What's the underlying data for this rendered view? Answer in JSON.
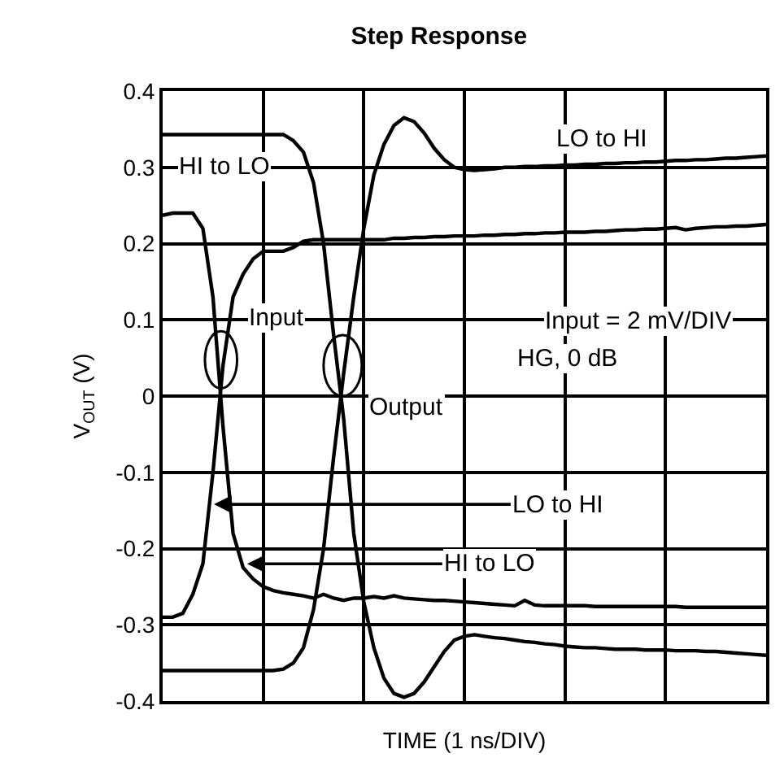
{
  "chart_data": {
    "type": "line",
    "title": "Step Response",
    "xlabel": "TIME (1 ns/DIV)",
    "ylabel": "V$_{OUT}$ (V)",
    "categories": [
      null,
      null,
      null,
      null,
      null,
      null,
      null,
      null,
      null,
      null,
      null,
      null,
      null,
      null,
      null,
      null,
      null,
      null,
      null,
      null,
      null,
      null,
      null,
      null,
      null,
      null,
      null,
      null,
      null,
      null,
      null,
      null,
      null,
      null,
      null,
      null,
      null,
      null,
      null,
      null,
      null,
      null,
      null,
      null,
      null,
      null,
      null,
      null,
      null,
      null,
      null,
      null,
      null,
      null,
      null,
      null,
      null,
      null,
      null,
      null,
      null
    ],
    "series": [
      {
        "color": "#000000",
        "values": [
          0.237,
          0.24,
          0.24,
          0.24,
          0.22,
          0.13,
          -0.04,
          -0.18,
          -0.225,
          -0.24,
          -0.25,
          -0.255,
          -0.258,
          -0.26,
          -0.262,
          -0.265,
          -0.26,
          -0.265,
          -0.268,
          -0.265,
          -0.265,
          -0.263,
          -0.265,
          -0.262,
          -0.265,
          -0.266,
          -0.267,
          -0.268,
          -0.268,
          -0.269,
          -0.27,
          -0.271,
          -0.272,
          -0.273,
          -0.274,
          -0.275,
          -0.268,
          -0.274,
          -0.275,
          -0.275,
          -0.275,
          -0.275,
          -0.275,
          -0.276,
          -0.276,
          -0.276,
          -0.276,
          -0.276,
          -0.276,
          -0.276,
          -0.276,
          -0.276,
          -0.277,
          -0.277,
          -0.277,
          -0.277,
          -0.277,
          -0.277,
          -0.277,
          -0.277,
          -0.277
        ]
      },
      {
        "color": "#000000",
        "values": [
          -0.29,
          -0.29,
          -0.285,
          -0.26,
          -0.22,
          -0.1,
          0.04,
          0.13,
          0.16,
          0.18,
          0.19,
          0.19,
          0.19,
          0.195,
          0.203,
          0.205,
          0.205,
          0.205,
          0.205,
          0.205,
          0.205,
          0.205,
          0.205,
          0.207,
          0.207,
          0.208,
          0.208,
          0.209,
          0.209,
          0.21,
          0.21,
          0.21,
          0.211,
          0.211,
          0.212,
          0.212,
          0.213,
          0.213,
          0.214,
          0.214,
          0.215,
          0.215,
          0.215,
          0.216,
          0.216,
          0.217,
          0.218,
          0.218,
          0.219,
          0.219,
          0.22,
          0.221,
          0.218,
          0.22,
          0.221,
          0.222,
          0.222,
          0.223,
          0.223,
          0.224,
          0.225
        ]
      },
      {
        "color": "#000000",
        "values": [
          -0.36,
          -0.36,
          -0.36,
          -0.36,
          -0.36,
          -0.36,
          -0.36,
          -0.36,
          -0.36,
          -0.36,
          -0.36,
          -0.36,
          -0.358,
          -0.35,
          -0.33,
          -0.28,
          -0.2,
          -0.08,
          0.03,
          0.13,
          0.22,
          0.29,
          0.33,
          0.355,
          0.365,
          0.36,
          0.345,
          0.325,
          0.31,
          0.3,
          0.297,
          0.296,
          0.297,
          0.298,
          0.3,
          0.3,
          0.301,
          0.301,
          0.302,
          0.302,
          0.303,
          0.303,
          0.304,
          0.304,
          0.305,
          0.305,
          0.306,
          0.306,
          0.307,
          0.307,
          0.308,
          0.309,
          0.309,
          0.31,
          0.31,
          0.311,
          0.312,
          0.312,
          0.313,
          0.314,
          0.315
        ]
      },
      {
        "color": "#000000",
        "values": [
          0.343,
          0.343,
          0.343,
          0.343,
          0.343,
          0.343,
          0.343,
          0.343,
          0.343,
          0.343,
          0.343,
          0.343,
          0.343,
          0.335,
          0.32,
          0.28,
          0.2,
          0.08,
          -0.03,
          -0.18,
          -0.27,
          -0.33,
          -0.37,
          -0.39,
          -0.395,
          -0.39,
          -0.375,
          -0.355,
          -0.335,
          -0.32,
          -0.315,
          -0.313,
          -0.315,
          -0.317,
          -0.318,
          -0.32,
          -0.322,
          -0.323,
          -0.325,
          -0.326,
          -0.328,
          -0.329,
          -0.33,
          -0.33,
          -0.331,
          -0.332,
          -0.332,
          -0.332,
          -0.333,
          -0.333,
          -0.333,
          -0.334,
          -0.334,
          -0.334,
          -0.335,
          -0.335,
          -0.336,
          -0.337,
          -0.338,
          -0.339,
          -0.34
        ]
      }
    ],
    "ylim": [
      -0.4,
      0.4
    ],
    "yticks": [
      -0.4,
      -0.3,
      -0.2,
      -0.1,
      0,
      0.1,
      0.2,
      0.3,
      0.4
    ],
    "grid": true,
    "tick_labels": "y",
    "marker": "none",
    "line_style": "solid",
    "annotations": [
      "HI to LO",
      "LO to HI",
      "Input",
      "Output",
      "Input = 2 mV/DIV",
      "HG, 0 dB",
      "LO to HI",
      "HI to LO"
    ]
  }
}
